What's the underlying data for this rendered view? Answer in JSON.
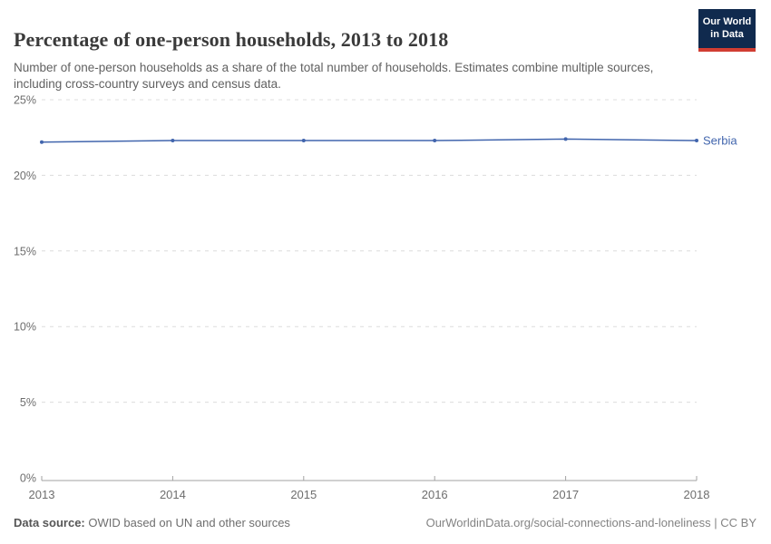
{
  "header": {
    "title": "Percentage of one-person households, 2013 to 2018",
    "subtitle": "Number of one-person households as a share of the total number of households. Estimates combine multiple sources, including cross-country surveys and census data."
  },
  "logo": {
    "line1": "Our World",
    "line2": "in Data",
    "bg_color": "#102a4e",
    "stripe_color": "#d13d32"
  },
  "chart_data": {
    "type": "line",
    "title": "Percentage of one-person households, 2013 to 2018",
    "x": [
      2013,
      2014,
      2015,
      2016,
      2017,
      2018
    ],
    "x_tick_labels": [
      "2013",
      "2014",
      "2015",
      "2016",
      "2017",
      "2018"
    ],
    "series": [
      {
        "name": "Serbia",
        "color": "#4165ad",
        "values": [
          22.2,
          22.3,
          22.3,
          22.3,
          22.4,
          22.3
        ]
      }
    ],
    "xlabel": "",
    "ylabel": "",
    "ylim": [
      0,
      25
    ],
    "yticks": [
      0,
      5,
      10,
      15,
      20,
      25
    ],
    "ytick_labels": [
      "0%",
      "5%",
      "10%",
      "15%",
      "20%",
      "25%"
    ],
    "grid": "horizontal-dashed",
    "gridline_color": "#dcdcdc",
    "axis_color": "#a2a2a2",
    "tick_label_color": "#6e6e6e",
    "legend": "end-of-line-label"
  },
  "footer": {
    "datasource_label": "Data source:",
    "datasource_text": "OWID based on UN and other sources",
    "link_text": "OurWorldinData.org/social-connections-and-loneliness | CC BY"
  }
}
